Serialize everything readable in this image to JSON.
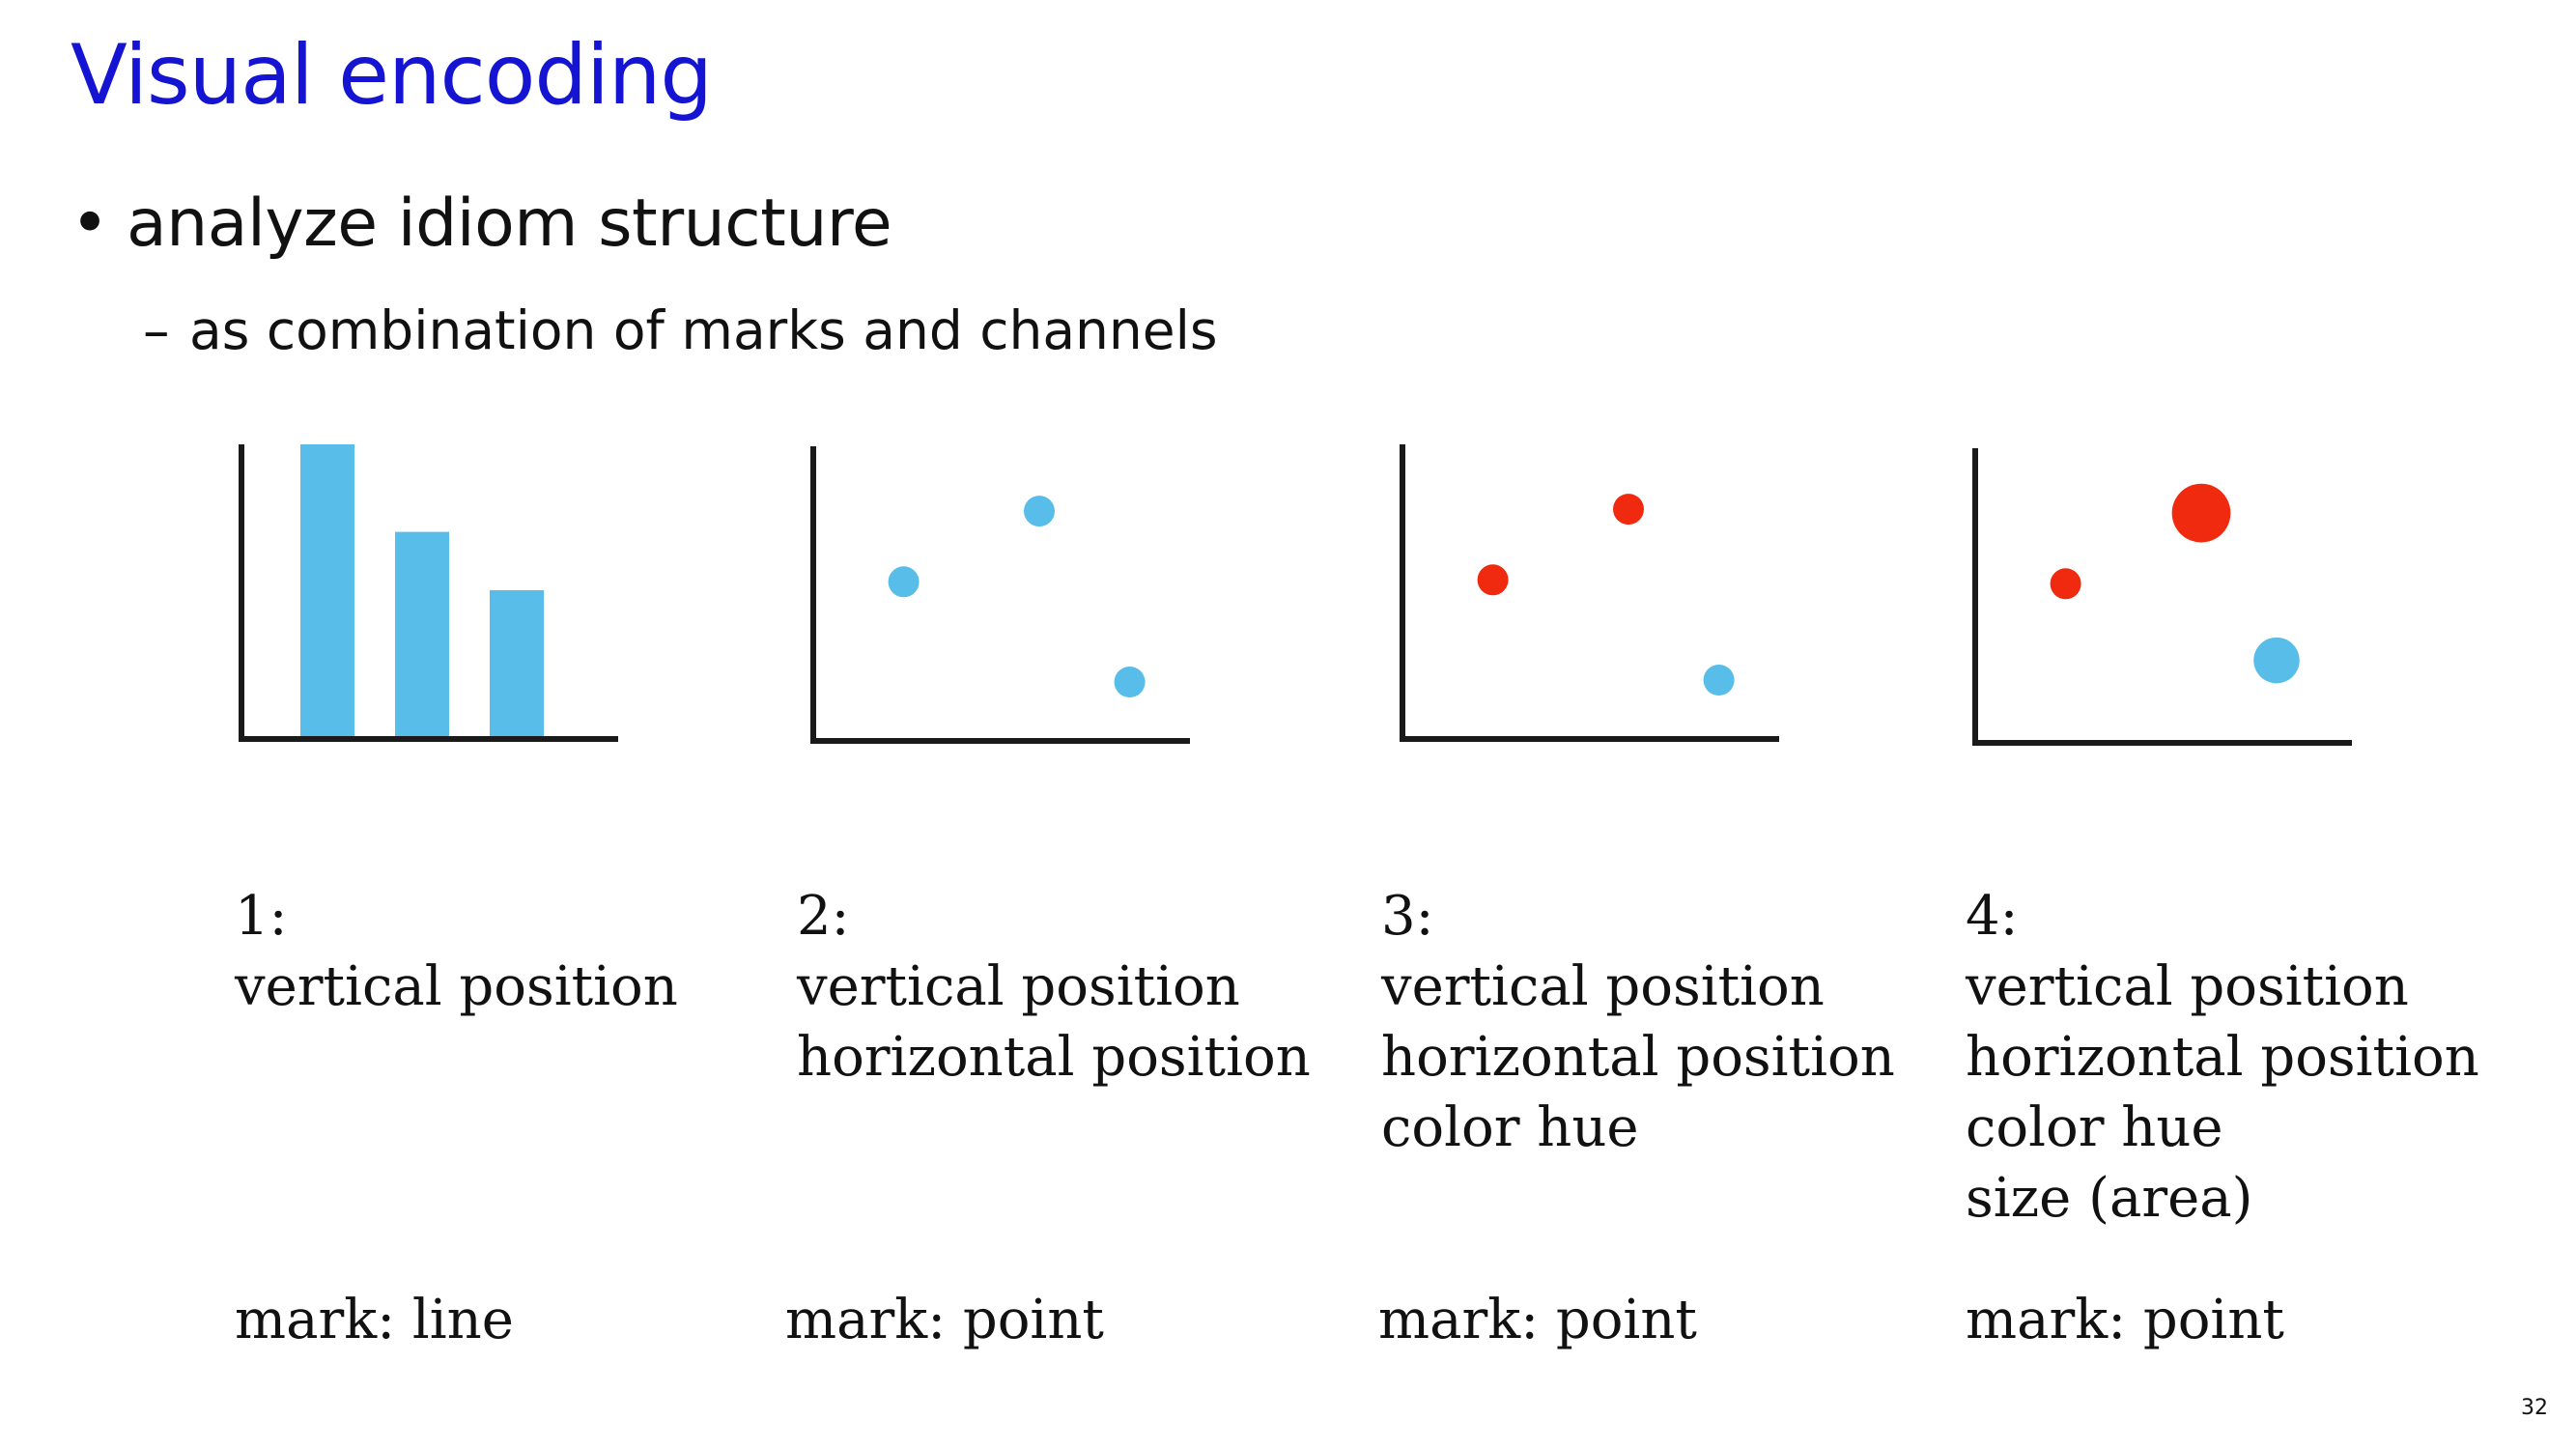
{
  "slide": {
    "title": "Visual encoding",
    "bullet": "analyze idiom structure",
    "bullet_marker": "•",
    "subbullet": "as combination of marks and channels",
    "subbullet_marker": "–",
    "page_number": "32"
  },
  "colors": {
    "title": "#1414d2",
    "blue": "#58bde9",
    "red": "#ef2a0e",
    "axis": "#1a1a1a"
  },
  "idioms": [
    {
      "number": "1:",
      "channels": [
        "vertical position"
      ],
      "mark": "mark: line"
    },
    {
      "number": "2:",
      "channels": [
        "vertical position",
        "horizontal position"
      ],
      "mark": "mark: point"
    },
    {
      "number": "3:",
      "channels": [
        "vertical position",
        "horizontal position",
        "color hue"
      ],
      "mark": "mark: point"
    },
    {
      "number": "4:",
      "channels": [
        "vertical position",
        "horizontal position",
        "color hue",
        "size (area)"
      ],
      "mark": "mark: point"
    }
  ],
  "chart_data": [
    {
      "type": "bar",
      "values": [
        1.0,
        0.7,
        0.5
      ],
      "color": "blue"
    },
    {
      "type": "scatter",
      "points": [
        {
          "x": 0.24,
          "y": 0.54,
          "color": "blue",
          "size": 1
        },
        {
          "x": 0.6,
          "y": 0.78,
          "color": "blue",
          "size": 1
        },
        {
          "x": 0.84,
          "y": 0.2,
          "color": "blue",
          "size": 1
        }
      ]
    },
    {
      "type": "scatter",
      "points": [
        {
          "x": 0.24,
          "y": 0.54,
          "color": "red",
          "size": 1
        },
        {
          "x": 0.6,
          "y": 0.78,
          "color": "red",
          "size": 1
        },
        {
          "x": 0.84,
          "y": 0.2,
          "color": "blue",
          "size": 1
        }
      ]
    },
    {
      "type": "scatter",
      "points": [
        {
          "x": 0.24,
          "y": 0.54,
          "color": "red",
          "size": 1
        },
        {
          "x": 0.6,
          "y": 0.78,
          "color": "red",
          "size": 3.6
        },
        {
          "x": 0.8,
          "y": 0.28,
          "color": "blue",
          "size": 2.2
        }
      ]
    }
  ]
}
